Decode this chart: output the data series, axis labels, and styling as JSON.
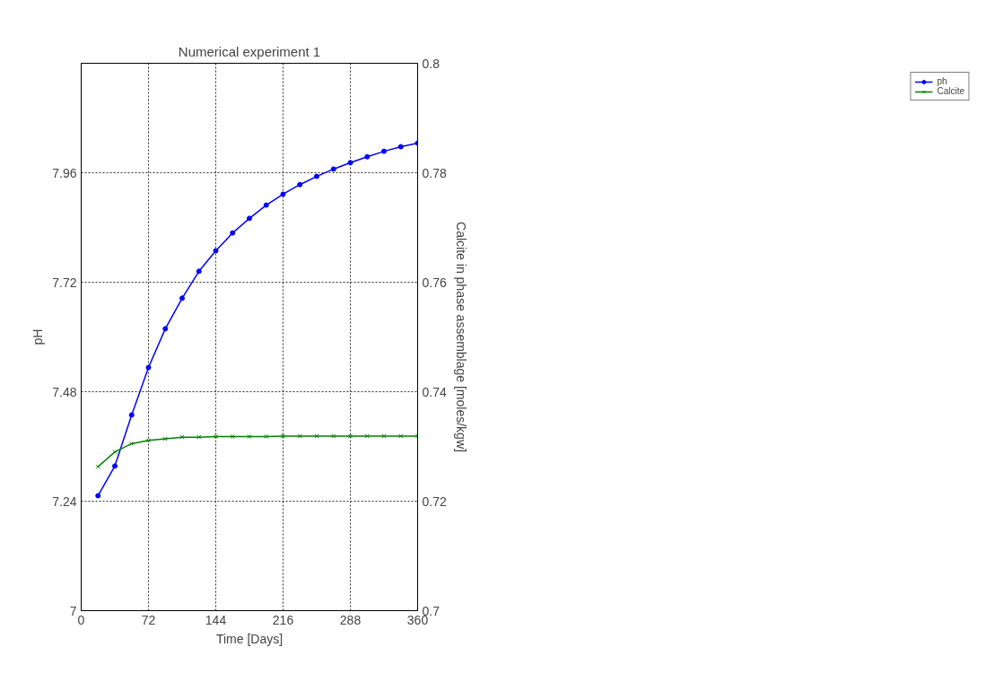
{
  "chart_data": {
    "type": "line",
    "title": "Numerical experiment 1",
    "xlabel": "Time [Days]",
    "ylabel": "pH",
    "y2label": "Calcite in phase assemblage [moles/kgw]",
    "x": [
      18,
      36,
      54,
      72,
      90,
      108,
      126,
      144,
      162,
      180,
      198,
      216,
      234,
      252,
      270,
      288,
      306,
      324,
      342,
      360
    ],
    "series": [
      {
        "name": "ph",
        "color": "#0000ff",
        "marker": "circle",
        "values": [
          7.252,
          7.317,
          7.429,
          7.533,
          7.618,
          7.685,
          7.744,
          7.789,
          7.828,
          7.86,
          7.889,
          7.913,
          7.934,
          7.952,
          7.968,
          7.982,
          7.995,
          8.007,
          8.017,
          8.025
        ]
      },
      {
        "name": "Calcite",
        "color": "#008000",
        "marker": "cross",
        "axis": "y2",
        "values": [
          0.7263,
          0.729,
          0.7305,
          0.7311,
          0.7314,
          0.7317,
          0.7317,
          0.7318,
          0.7318,
          0.7318,
          0.7318,
          0.7319,
          0.7319,
          0.7319,
          0.7319,
          0.7319,
          0.7319,
          0.7319,
          0.7319,
          0.7319
        ]
      }
    ],
    "xlim": [
      0,
      360
    ],
    "xticks": [
      0,
      72,
      144,
      216,
      288,
      360
    ],
    "ylim": [
      7,
      8.2
    ],
    "yticks": [
      7,
      7.24,
      7.48,
      7.72,
      7.96
    ],
    "y2lim": [
      0.7,
      0.8
    ],
    "y2ticks": [
      0.7,
      0.72,
      0.74,
      0.76,
      0.78,
      0.8
    ],
    "grid": true,
    "legend": "top right",
    "line_style": "solid"
  }
}
